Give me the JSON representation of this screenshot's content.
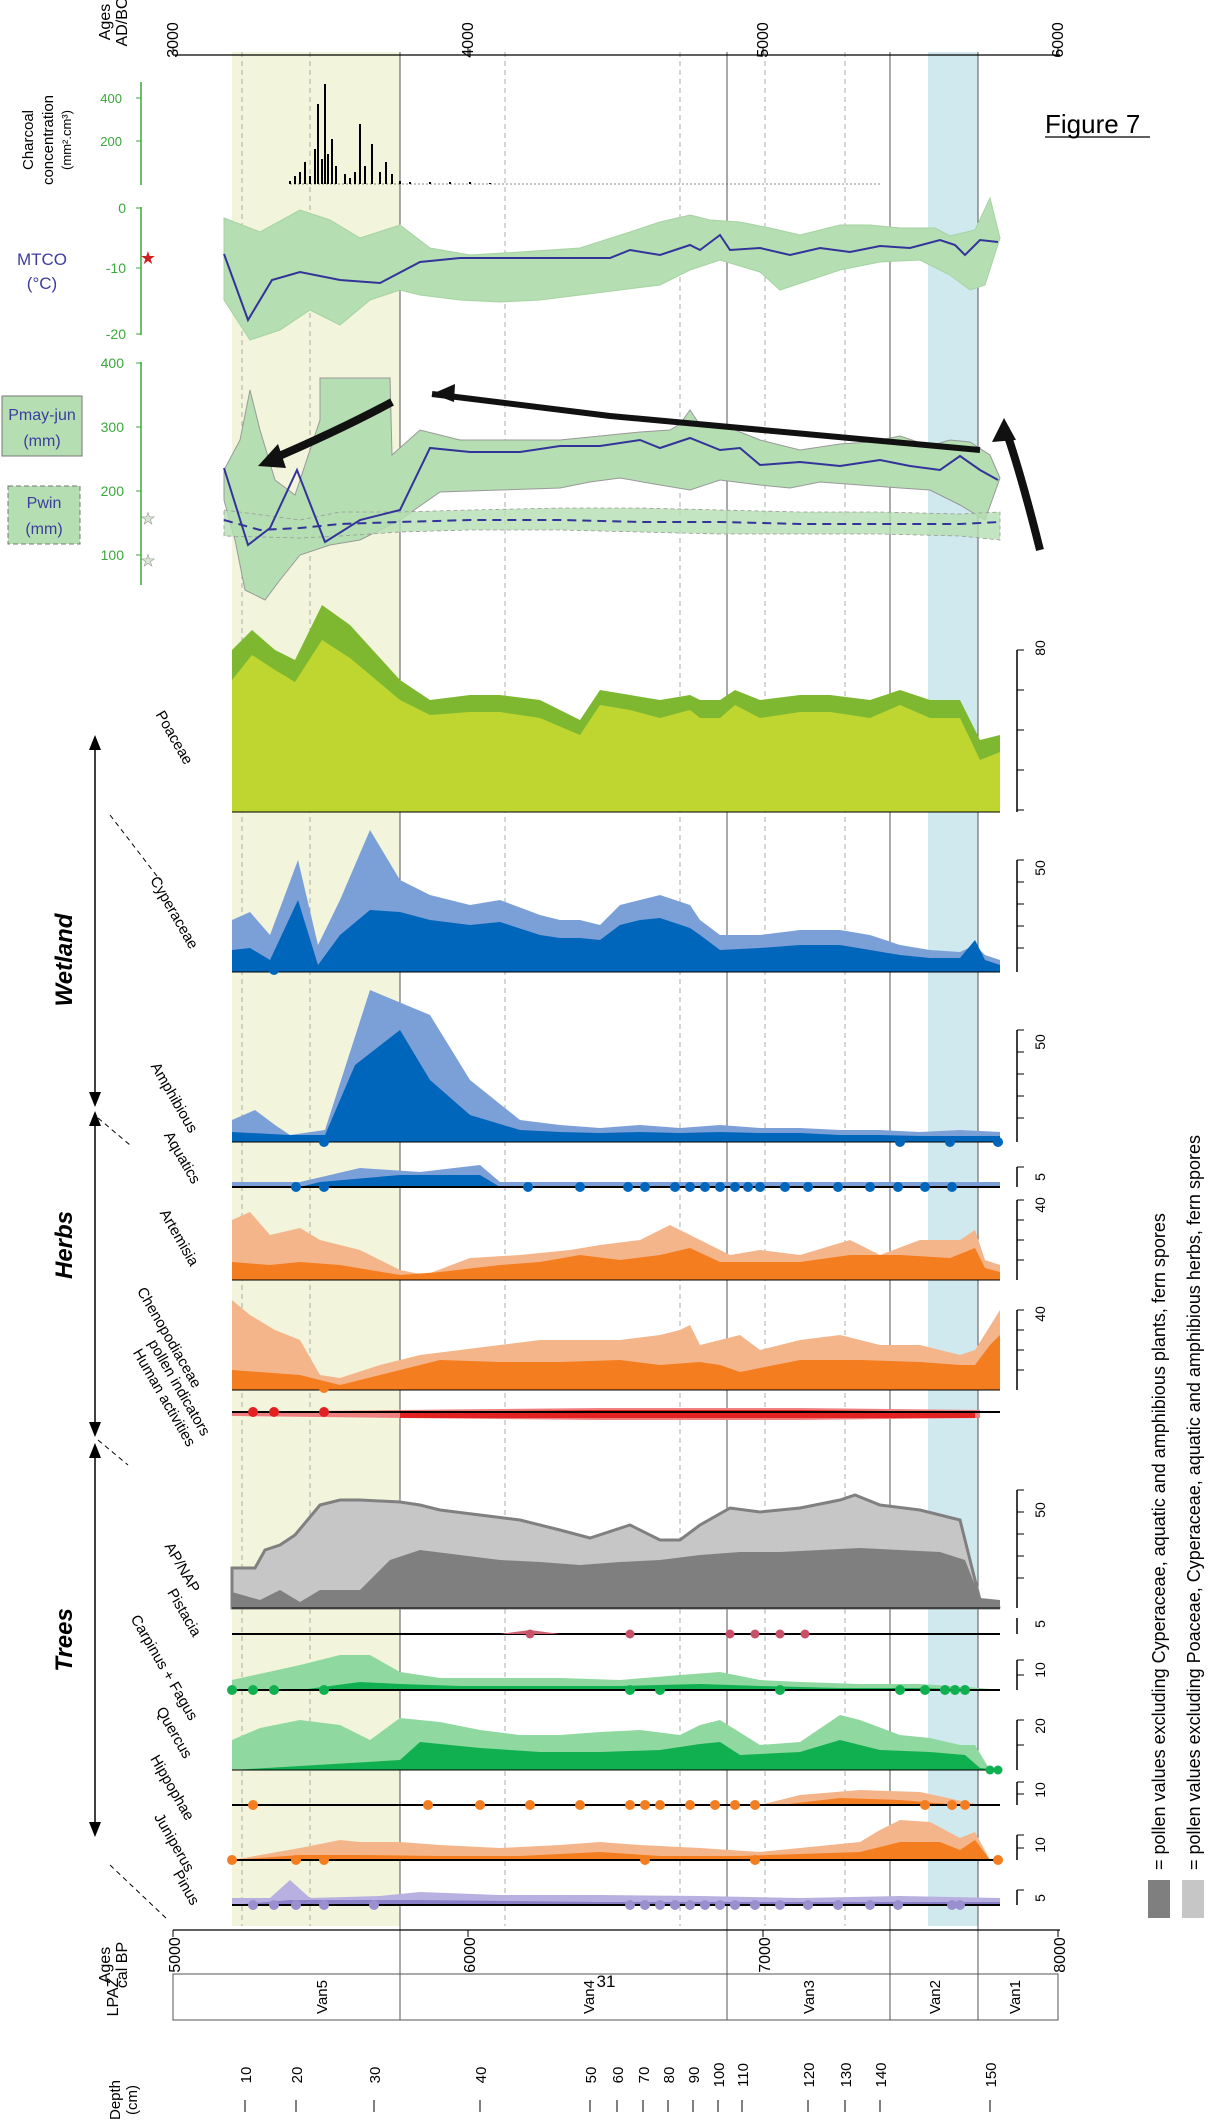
{
  "figure_title": "Figure 7",
  "top_axis": {
    "title_line1": "Ages",
    "title_line2": "AD/BC",
    "ticks": [
      "3000",
      "4000",
      "5000",
      "6000"
    ]
  },
  "bottom_axis": {
    "title_line1": "Ages",
    "title_line2": "cal BP",
    "ticks": [
      "5000",
      "6000",
      "7000",
      "8000"
    ]
  },
  "zone_row": {
    "label": "LPAZ",
    "zones": [
      "Van5",
      "Van4",
      "Van3",
      "Van2",
      "Van1"
    ],
    "extra": "31"
  },
  "depth_row": {
    "title_line1": "Depth",
    "title_line2": "(cm)",
    "ticks": [
      "10",
      "20",
      "30",
      "40",
      "50",
      "60",
      "70",
      "80",
      "90",
      "100",
      "110",
      "120",
      "130",
      "140",
      "150"
    ]
  },
  "charcoal": {
    "label_line1": "Charcoal",
    "label_line2": "concentration",
    "label_line3": "(mm².cm³)",
    "ticks": [
      "400",
      "200"
    ]
  },
  "mtco": {
    "label_line1": "MTCO",
    "label_line2": "(°C)",
    "ticks": [
      "0",
      "-10",
      "-20"
    ]
  },
  "precip": {
    "pmay_line1": "Pmay-jun",
    "pmay_line2": "(mm)",
    "pwin_line1": "Pwin",
    "pwin_line2": "(mm)",
    "ticks": [
      "400",
      "300",
      "200",
      "100"
    ]
  },
  "groups": {
    "trees": "Trees",
    "herbs": "Herbs",
    "wetland": "Wetland"
  },
  "taxa": {
    "poaceae": "Poaceae",
    "cyperaceae": "Cyperaceae",
    "amphibious": "Amphibious",
    "aquatics": "Aquatics",
    "artemisia": "Artemisia",
    "chenopodiaceae": "Chenopodiaceae",
    "human_line1": "Human activities",
    "human_line2": "pollen indicators",
    "apnap": "AP/NAP",
    "pistacia": "Pistacia",
    "carpinus": "Carpinus + Fagus",
    "quercus": "Quercus",
    "hippophae": "Hippophae",
    "juniperus": "Juniperus",
    "pinus": "Pinus"
  },
  "scales": {
    "poaceae": "80",
    "cyperaceae": "50",
    "amphibious": "50",
    "aquatics": "5",
    "artemisia": "40",
    "chenopodiaceae": "40",
    "apnap": "50",
    "pistacia": "5",
    "carpinus": "10",
    "quercus": "20",
    "hippophae": "10",
    "juniperus": "10",
    "pinus": "5"
  },
  "legend": {
    "dark": "= pollen values excluding Cyperaceae, aquatic and amphibious plants, fern spores",
    "light": "= pollen values excluding Poaceae, Cyperaceae, aquatic and amphibious herbs, fern spores"
  }
}
